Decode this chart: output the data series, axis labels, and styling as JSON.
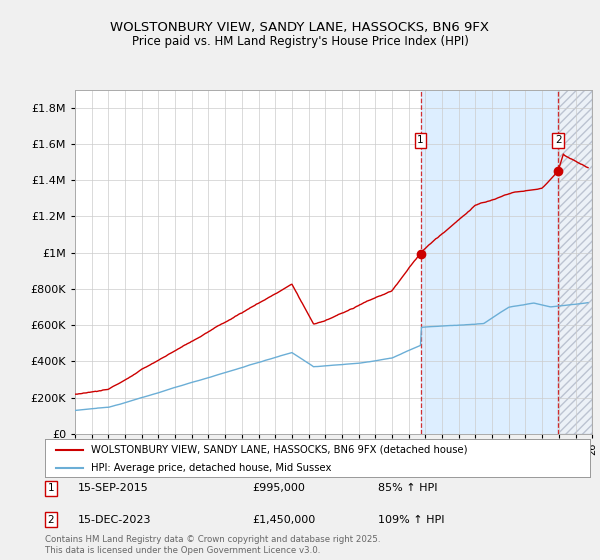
{
  "title": "WOLSTONBURY VIEW, SANDY LANE, HASSOCKS, BN6 9FX",
  "subtitle": "Price paid vs. HM Land Registry's House Price Index (HPI)",
  "ytick_values": [
    0,
    200000,
    400000,
    600000,
    800000,
    1000000,
    1200000,
    1400000,
    1600000,
    1800000
  ],
  "ylim": [
    0,
    1900000
  ],
  "xlim_start": 1995,
  "xlim_end": 2026,
  "red_line_color": "#cc0000",
  "blue_line_color": "#6baed6",
  "shade_color": "#ddeeff",
  "marker1_date": 2015.71,
  "marker1_value": 995000,
  "marker2_date": 2023.96,
  "marker2_value": 1450000,
  "legend_red_label": "WOLSTONBURY VIEW, SANDY LANE, HASSOCKS, BN6 9FX (detached house)",
  "legend_blue_label": "HPI: Average price, detached house, Mid Sussex",
  "footer": "Contains HM Land Registry data © Crown copyright and database right 2025.\nThis data is licensed under the Open Government Licence v3.0.",
  "background_color": "#f0f0f0",
  "plot_background_color": "#ffffff",
  "grid_color": "#cccccc"
}
